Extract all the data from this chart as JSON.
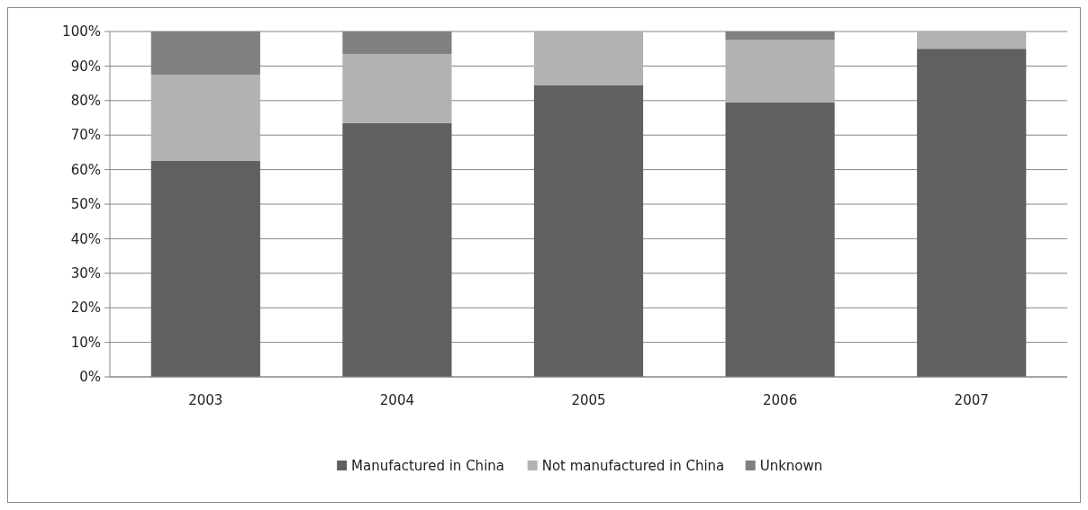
{
  "chart_data": {
    "type": "bar",
    "stacked": true,
    "categories": [
      "2003",
      "2004",
      "2005",
      "2006",
      "2007"
    ],
    "series": [
      {
        "name": "Manufactured in China",
        "color": "#606060",
        "values": [
          62.5,
          73.5,
          84.5,
          79.5,
          95
        ]
      },
      {
        "name": "Not manufactured in China",
        "color": "#b2b2b2",
        "values": [
          25,
          20,
          15.5,
          18,
          5
        ]
      },
      {
        "name": "Unknown",
        "color": "#808080",
        "values": [
          12.5,
          6.5,
          0,
          2.5,
          0
        ]
      }
    ],
    "ylim": [
      0,
      100
    ],
    "yticks": [
      {
        "value": 0,
        "label": "0%"
      },
      {
        "value": 10,
        "label": "10%"
      },
      {
        "value": 20,
        "label": "20%"
      },
      {
        "value": 30,
        "label": "30%"
      },
      {
        "value": 40,
        "label": "40%"
      },
      {
        "value": 50,
        "label": "50%"
      },
      {
        "value": 60,
        "label": "60%"
      },
      {
        "value": 70,
        "label": "70%"
      },
      {
        "value": 80,
        "label": "80%"
      },
      {
        "value": 90,
        "label": "90%"
      },
      {
        "value": 100,
        "label": "100%"
      }
    ],
    "grid": "y",
    "legend": "bottom"
  }
}
